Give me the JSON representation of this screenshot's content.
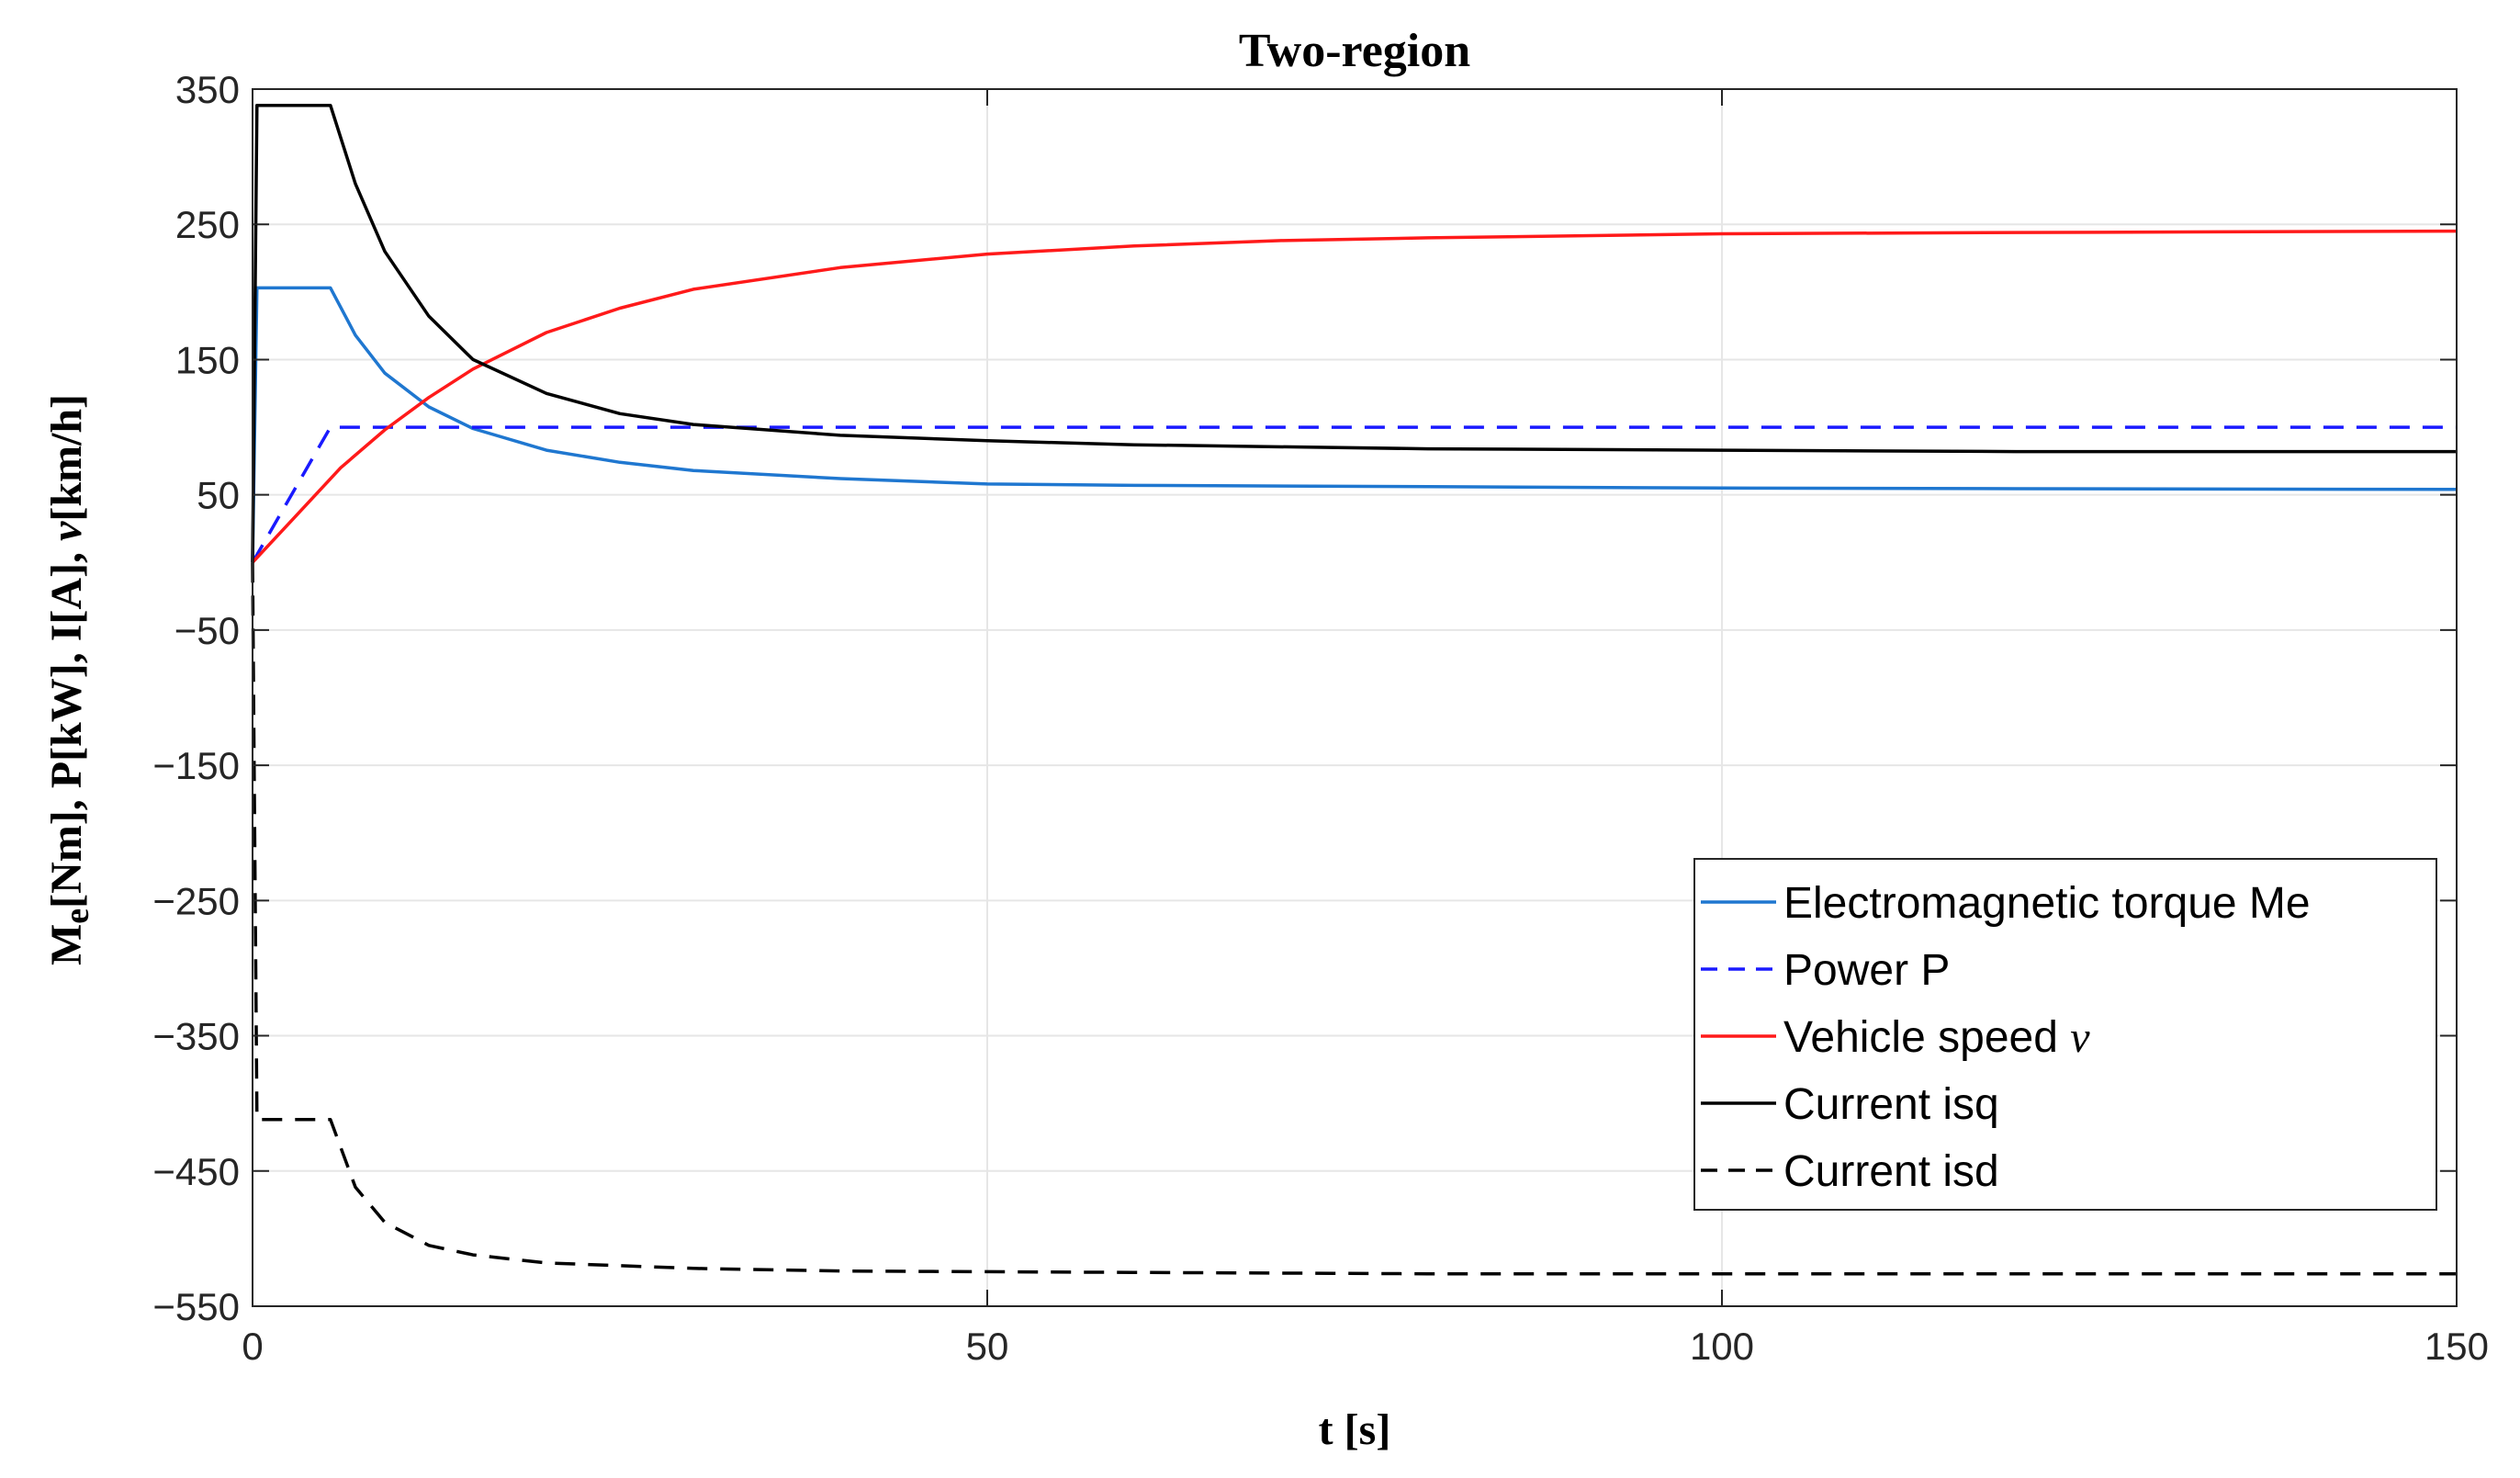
{
  "chart_data": {
    "type": "line",
    "title": "Two-region",
    "xlabel": "t [s]",
    "ylabel_parts": [
      "M",
      "e",
      "[Nm], P[kW], I[A], ",
      "ν",
      "[km/h]"
    ],
    "xlim": [
      0,
      150
    ],
    "ylim": [
      -550,
      350
    ],
    "xticks": [
      0,
      50,
      100,
      150
    ],
    "yticks": [
      350,
      250,
      150,
      50,
      -50,
      -150,
      -250,
      -350,
      -450,
      -550
    ],
    "ytick_labels": [
      "350",
      "250",
      "150",
      "50",
      "−50",
      "−150",
      "−250",
      "−350",
      "−450",
      "−550"
    ],
    "grid": true,
    "legend_position": "bottom-right",
    "series": [
      {
        "name": "Electromagnetic torque Me",
        "color": "#1f77d0",
        "dash": "solid",
        "x": [
          0,
          0.3,
          5.3,
          7,
          9,
          12,
          15,
          20,
          25,
          30,
          40,
          50,
          60,
          80,
          100,
          120,
          150
        ],
        "y": [
          0,
          203,
          203,
          168,
          140,
          115,
          99,
          83,
          74,
          68,
          62,
          58,
          57,
          56,
          55,
          54.5,
          54
        ]
      },
      {
        "name": "Power P",
        "color": "#1a1aff",
        "dash": "dashed",
        "x": [
          0,
          5.3,
          150
        ],
        "y": [
          0,
          100,
          100
        ]
      },
      {
        "name": "Vehicle speed ",
        "name_symbol": "ν",
        "color": "#ff1a1a",
        "dash": "solid",
        "x": [
          0,
          3,
          6,
          9,
          12,
          15,
          20,
          25,
          30,
          40,
          50,
          60,
          70,
          80,
          100,
          120,
          150
        ],
        "y": [
          0,
          35,
          70,
          98,
          122,
          143,
          170,
          188,
          202,
          218,
          228,
          234,
          238,
          240,
          243,
          244,
          245
        ]
      },
      {
        "name": "Current isq",
        "color": "#000000",
        "dash": "solid",
        "x": [
          0,
          0.3,
          5.3,
          7,
          9,
          12,
          15,
          20,
          25,
          30,
          40,
          50,
          60,
          80,
          100,
          120,
          150
        ],
        "y": [
          0,
          338,
          338,
          280,
          230,
          182,
          150,
          125,
          110,
          102,
          94,
          90,
          87,
          84,
          83,
          82,
          82
        ]
      },
      {
        "name": "Current isd",
        "color": "#000000",
        "dash": "dashed",
        "x": [
          0,
          0.3,
          5.3,
          7,
          9,
          12,
          15,
          20,
          30,
          40,
          60,
          80,
          100,
          150
        ],
        "y": [
          0,
          -412,
          -412,
          -462,
          -488,
          -505,
          -512,
          -518,
          -522,
          -524,
          -525,
          -526,
          -526,
          -526
        ]
      }
    ]
  }
}
